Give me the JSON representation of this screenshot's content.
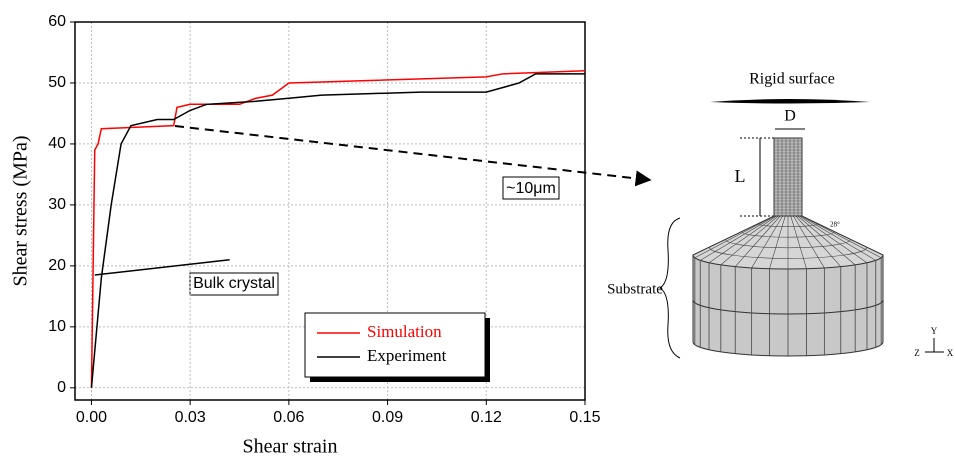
{
  "chart_data": {
    "type": "line",
    "xlabel": "Shear strain",
    "ylabel": "Shear stress (MPa)",
    "xlim": [
      -0.005,
      0.15
    ],
    "ylim": [
      -2,
      60
    ],
    "xticks": [
      {
        "value": 0,
        "label": "0.00"
      },
      0.03,
      0.06,
      0.09,
      0.12,
      0.15
    ],
    "yticks": [
      0,
      10,
      20,
      30,
      40,
      50,
      60
    ],
    "grid": true,
    "legend": "lower center",
    "series": [
      {
        "name": "Simulation",
        "color": "#ff0000",
        "x": [
          0,
          0.001,
          0.002,
          0.003,
          0.025,
          0.026,
          0.03,
          0.045,
          0.05,
          0.055,
          0.06,
          0.12,
          0.125,
          0.15
        ],
        "values": [
          0,
          39,
          40,
          42.5,
          43,
          46,
          46.5,
          46.5,
          47.5,
          48,
          50,
          51,
          51.5,
          52
        ]
      },
      {
        "name": "Experiment",
        "color": "#000000",
        "x": [
          0,
          0.003,
          0.006,
          0.009,
          0.012,
          0.02,
          0.025,
          0.03,
          0.035,
          0.05,
          0.06,
          0.07,
          0.1,
          0.12,
          0.13,
          0.135,
          0.15
        ],
        "values": [
          0,
          18,
          30,
          40,
          43,
          44,
          44,
          45.5,
          46.5,
          47,
          47.5,
          48,
          48.5,
          48.5,
          50,
          51.5,
          51.5
        ]
      },
      {
        "color": "#000000",
        "x": [
          0.001,
          0.042
        ],
        "values": [
          18.5,
          21
        ]
      }
    ],
    "annotations": [
      "~10μm",
      "Bulk crystal"
    ]
  },
  "diagram": {
    "top": "Rigid surface",
    "width": "D",
    "length": "L",
    "base": "Substrate",
    "angle": "28°",
    "axes": [
      "Y",
      "Z",
      "X"
    ]
  }
}
